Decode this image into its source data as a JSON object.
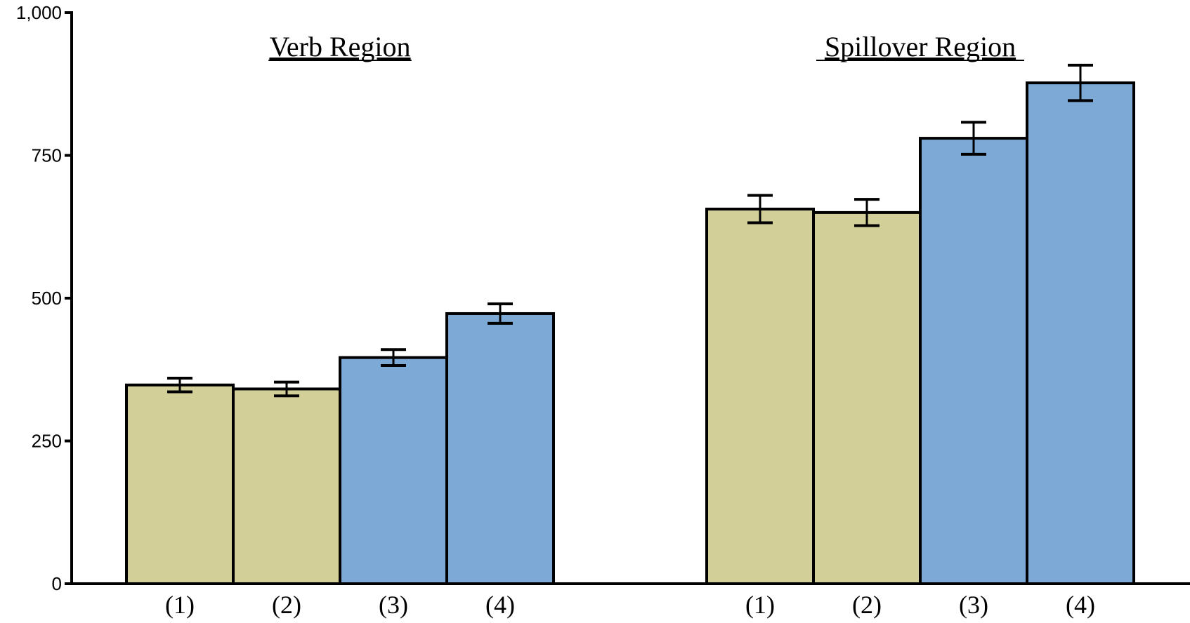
{
  "chart_data": {
    "type": "bar",
    "ylim": [
      0,
      1000
    ],
    "yticks": [
      0,
      250,
      500,
      750,
      1000
    ],
    "ytick_labels": [
      "0",
      "250",
      "500",
      "750",
      "1,000"
    ],
    "grid": false,
    "colors": {
      "A": "#d3cf98",
      "B": "#7ca9d6",
      "stroke": "#000000"
    },
    "groups": [
      {
        "title": "Verb Region",
        "bars": [
          {
            "label": "(1)",
            "value": 348,
            "err": 12,
            "color_key": "A"
          },
          {
            "label": "(2)",
            "value": 341,
            "err": 12,
            "color_key": "A"
          },
          {
            "label": "(3)",
            "value": 396,
            "err": 14,
            "color_key": "B"
          },
          {
            "label": "(4)",
            "value": 473,
            "err": 17,
            "color_key": "B"
          }
        ]
      },
      {
        "title": "Spillover Region",
        "bars": [
          {
            "label": "(1)",
            "value": 656,
            "err": 24,
            "color_key": "A"
          },
          {
            "label": "(2)",
            "value": 650,
            "err": 23,
            "color_key": "A"
          },
          {
            "label": "(3)",
            "value": 780,
            "err": 28,
            "color_key": "B"
          },
          {
            "label": "(4)",
            "value": 877,
            "err": 31,
            "color_key": "B"
          }
        ]
      }
    ]
  }
}
